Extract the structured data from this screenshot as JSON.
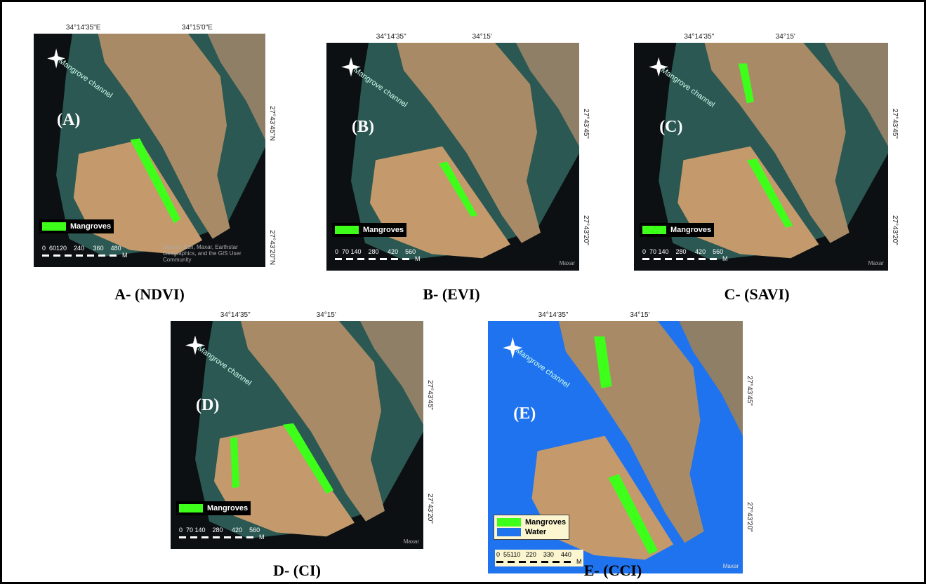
{
  "panels": [
    {
      "label": "(A)",
      "caption": "A- (NDVI)",
      "lon_ticks": [
        "34°14'35\"E",
        "34°15'0\"E"
      ],
      "lat_ticks": [
        "27°43'45\"N",
        "27°43'20\"N"
      ],
      "channel": "Mangrove channel",
      "legend": [
        "Mangroves"
      ],
      "scale": "0  60120    240     360    480",
      "scale_unit": "M",
      "credit": "Source: Esri, Maxar, Earthstar Geographics, and the GIS User Community"
    },
    {
      "label": "(B)",
      "caption": "B- (EVI)",
      "lon_ticks": [
        "34°14'35\"",
        "34°15'"
      ],
      "lat_ticks": [
        "27°43'45\"",
        "27°43'20\""
      ],
      "channel": "Mangrove channel",
      "legend": [
        "Mangroves"
      ],
      "scale": "0  70 140    280     420    560",
      "scale_unit": "M",
      "credit": "Maxar"
    },
    {
      "label": "(C)",
      "caption": "C- (SAVI)",
      "lon_ticks": [
        "34°14'35\"",
        "34°15'"
      ],
      "lat_ticks": [
        "27°43'45\"",
        "27°43'20\""
      ],
      "channel": "Mangrove channel",
      "legend": [
        "Mangroves"
      ],
      "scale": "0  70 140    280     420    560",
      "scale_unit": "M",
      "credit": "Maxar"
    },
    {
      "label": "(D)",
      "caption": "D- (CI)",
      "lon_ticks": [
        "34°14'35\"",
        "34°15'"
      ],
      "lat_ticks": [
        "27°43'45\"",
        "27°43'20\""
      ],
      "channel": "Mangrove channel",
      "legend": [
        "Mangroves"
      ],
      "scale": "0  70 140    280     420    560",
      "scale_unit": "M",
      "credit": "Maxar"
    },
    {
      "label": "(E)",
      "caption": "E- (CCI)",
      "lon_ticks": [
        "34°14'35\"",
        "34°15'"
      ],
      "lat_ticks": [
        "27°43'45\"",
        "27°43'20\""
      ],
      "channel": "Mangrove channel",
      "legend": [
        "Mangroves",
        "Water"
      ],
      "scale": "0  55110   220    330    440",
      "scale_unit": "M",
      "credit": "Maxar"
    }
  ]
}
